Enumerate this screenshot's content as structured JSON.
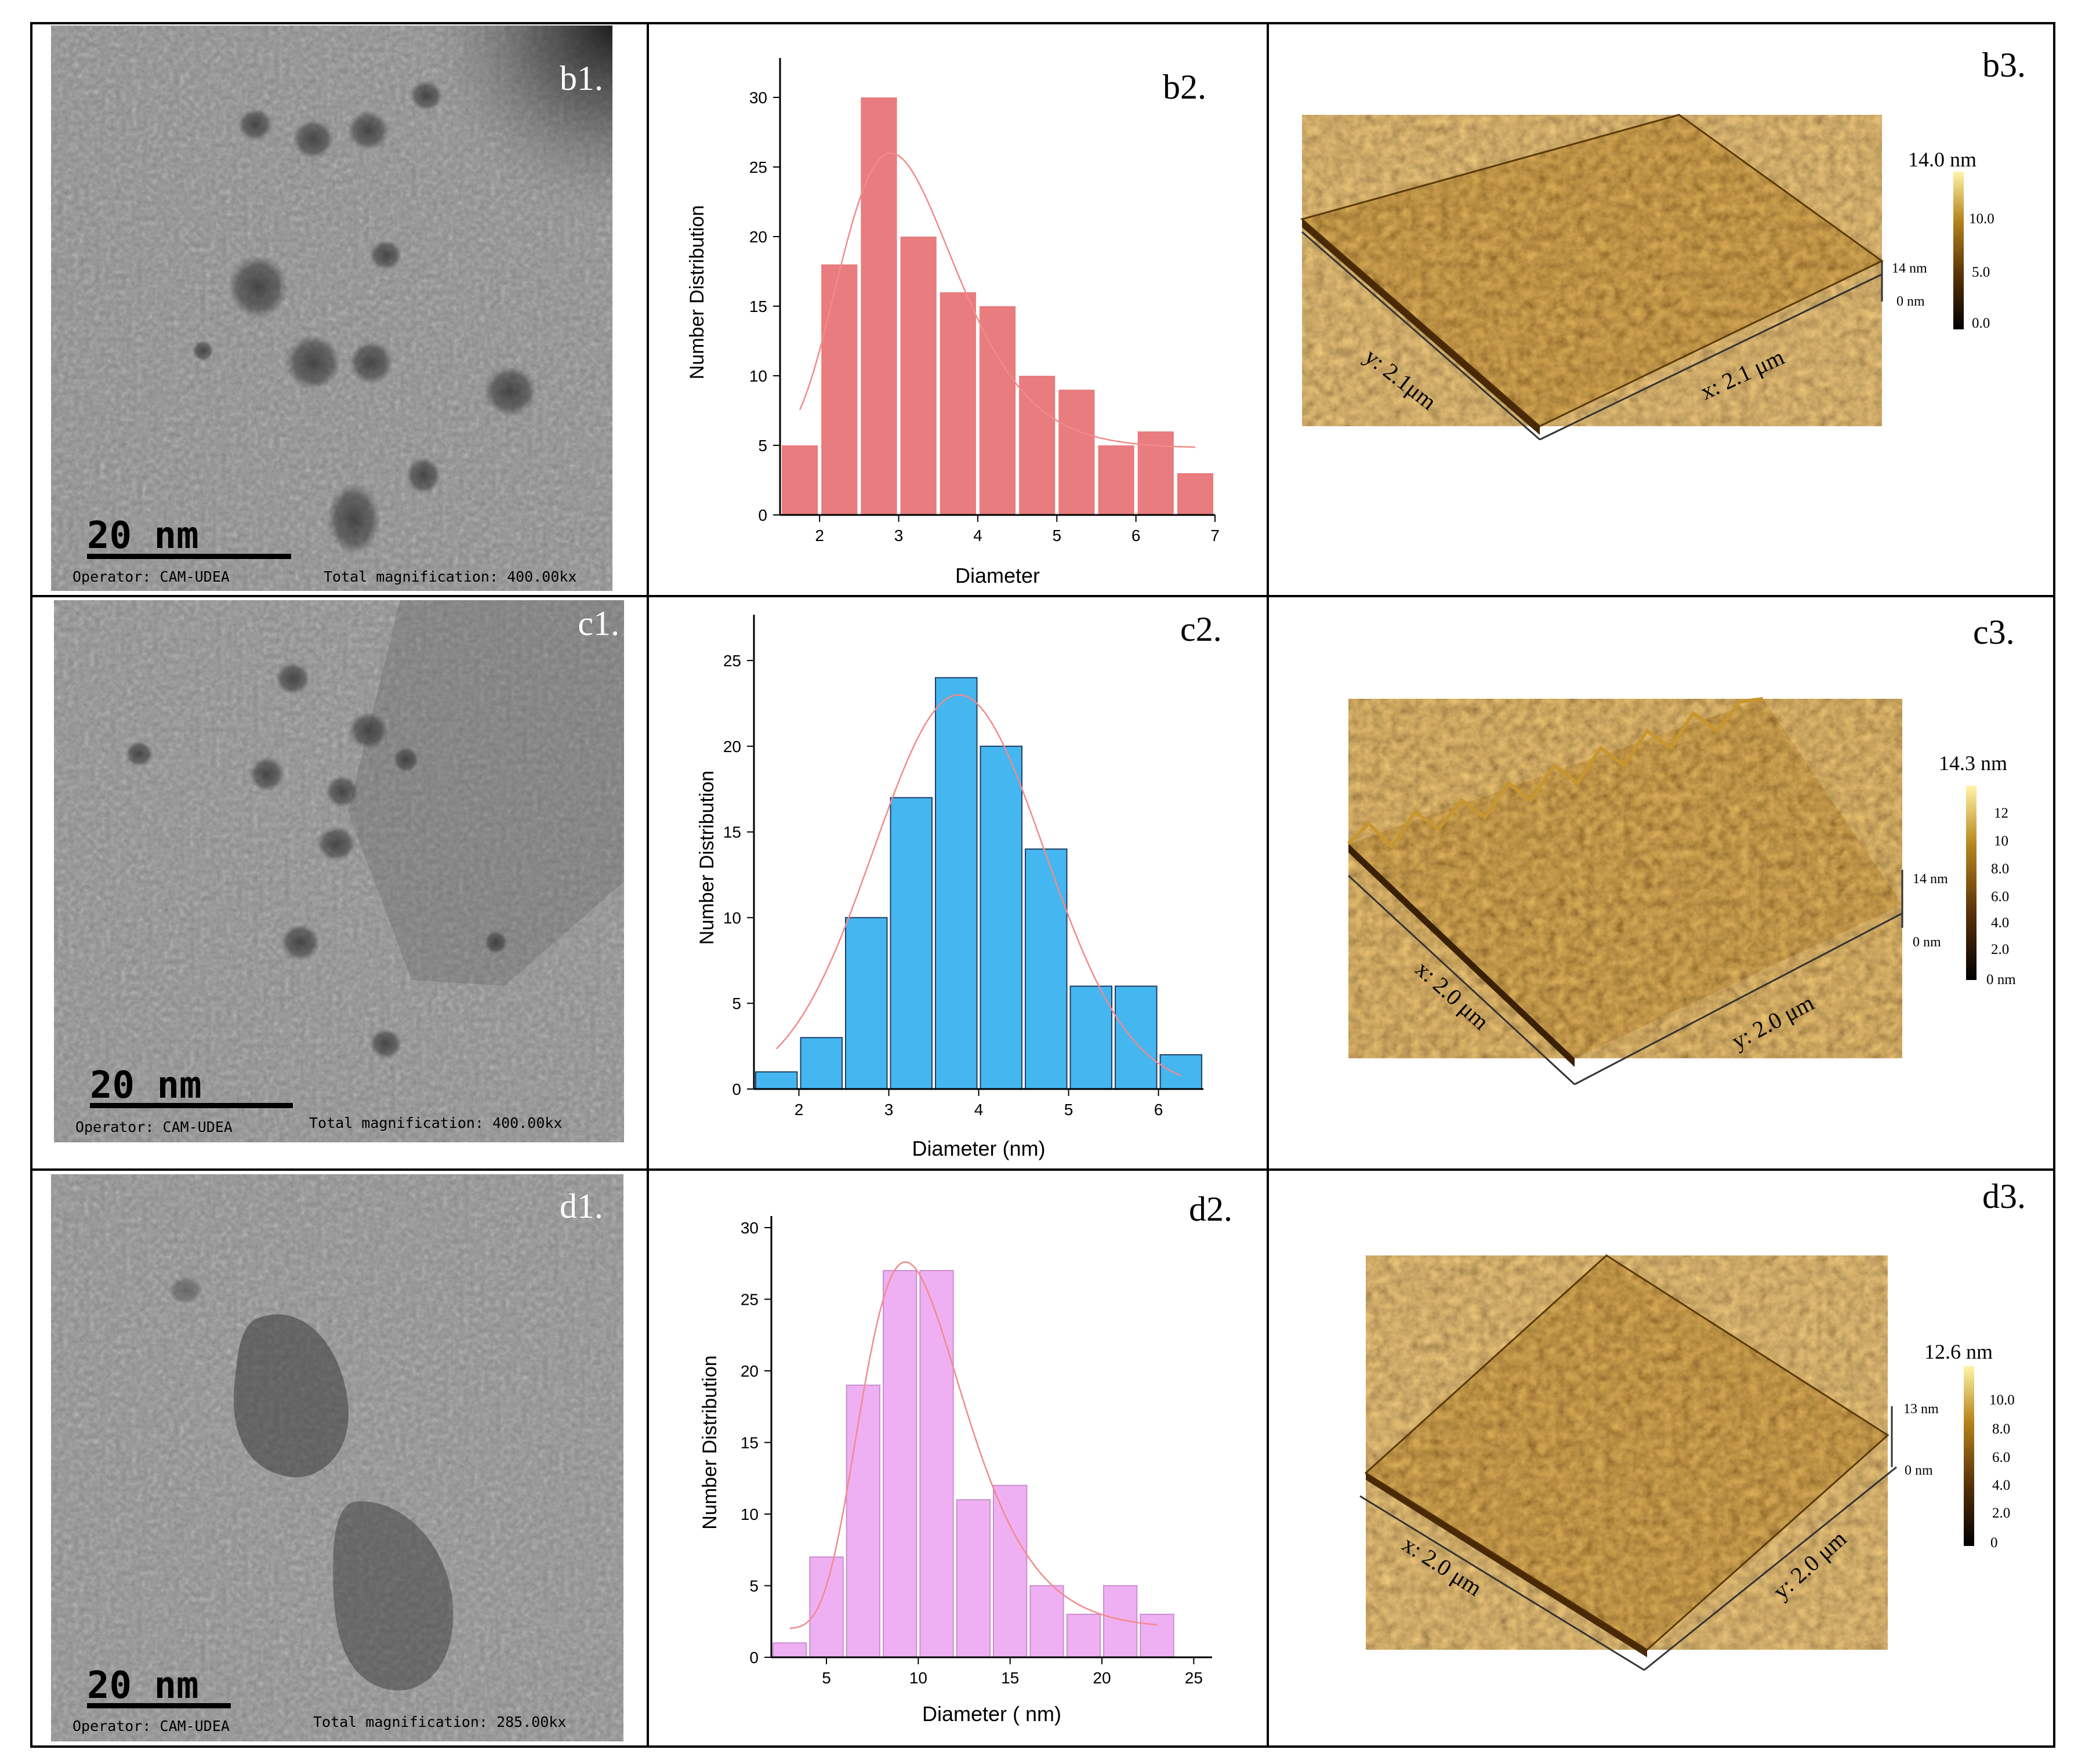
{
  "panels": {
    "b1": {
      "label": "b1.",
      "scale_bar": "20 nm",
      "operator": "Operator: CAM-UDEA",
      "magnification": "Total magnification: 400.00kx"
    },
    "c1": {
      "label": "c1.",
      "scale_bar": "20 nm",
      "operator": "Operator: CAM-UDEA",
      "magnification": "Total magnification: 400.00kx"
    },
    "d1": {
      "label": "d1.",
      "scale_bar": "20 nm",
      "operator": "Operator: CAM-UDEA",
      "magnification": "Total magnification: 285.00kx"
    },
    "b3": {
      "label": "b3.",
      "max_height": "14.0 nm",
      "colorbar_ticks": [
        "10.0",
        "5.0",
        "0.0"
      ],
      "z_top": "14 nm",
      "z_bottom": "0 nm",
      "axis_a": "y: 2.1μm",
      "axis_b": "x: 2.1 μm"
    },
    "c3": {
      "label": "c3.",
      "max_height": "14.3 nm",
      "colorbar_ticks": [
        "12",
        "10",
        "8.0",
        "6.0",
        "4.0",
        "2.0",
        "0 nm"
      ],
      "z_top": "14 nm",
      "z_bottom": "0 nm",
      "axis_a": "x: 2.0 μm",
      "axis_b": "y: 2.0 μm"
    },
    "d3": {
      "label": "d3.",
      "max_height": "12.6 nm",
      "colorbar_ticks": [
        "10.0",
        "8.0",
        "6.0",
        "4.0",
        "2.0",
        "0"
      ],
      "z_top": "13 nm",
      "z_bottom": "0 nm",
      "axis_a": "x: 2.0 μm",
      "axis_b": "y: 2.0 μm"
    }
  },
  "colors": {
    "b2": "#e87c7e",
    "c2": "#44b6f0",
    "d2": "#efb0f3",
    "fit": "#f28a8a",
    "afm_dark": "#4a2a06",
    "afm_mid": "#8a5a14",
    "afm_light": "#d8a84a"
  },
  "chart_data": [
    {
      "id": "b2",
      "type": "bar",
      "panel_label": "b2.",
      "title": "",
      "xlabel": "Diameter",
      "ylabel": "Number Distribution",
      "x": [
        1.75,
        2.25,
        2.75,
        3.25,
        3.75,
        4.25,
        4.75,
        5.25,
        5.75,
        6.25,
        6.75
      ],
      "bin_width": 0.5,
      "values": [
        5,
        18,
        30,
        20,
        16,
        15,
        10,
        9,
        5,
        6,
        3
      ],
      "xlim": [
        1.5,
        7
      ],
      "ylim": [
        0,
        32
      ],
      "xticks": [
        2,
        3,
        4,
        5,
        6,
        7
      ],
      "yticks": [
        0,
        5,
        10,
        15,
        20,
        25,
        30
      ],
      "fit": {
        "type": "lognormal",
        "center": 2.9,
        "peak": 26,
        "baseline": 4.8,
        "sigma": 0.25
      }
    },
    {
      "id": "c2",
      "type": "bar",
      "panel_label": "c2.",
      "title": "",
      "xlabel": "Diameter (nm)",
      "ylabel": "Number Distribution",
      "x": [
        1.75,
        2.25,
        2.75,
        3.25,
        3.75,
        4.25,
        4.75,
        5.25,
        5.75,
        6.25
      ],
      "bin_width": 0.5,
      "values": [
        1,
        3,
        10,
        17,
        24,
        20,
        14,
        6,
        6,
        2
      ],
      "xlim": [
        1.5,
        6.5
      ],
      "ylim": [
        0,
        27
      ],
      "xticks": [
        2,
        3,
        4,
        5,
        6
      ],
      "yticks": [
        0,
        5,
        10,
        15,
        20,
        25
      ],
      "fit": {
        "type": "gaussian",
        "center": 3.78,
        "peak": 23,
        "baseline": 0,
        "sigma": 0.95
      }
    },
    {
      "id": "d2",
      "type": "bar",
      "panel_label": "d2.",
      "title": "",
      "xlabel": "Diameter ( nm)",
      "ylabel": "Number Distribution",
      "x": [
        3,
        5,
        7,
        9,
        11,
        13,
        15,
        17,
        19,
        21,
        23
      ],
      "bin_width": 2,
      "values": [
        1,
        7,
        19,
        27,
        27,
        11,
        12,
        5,
        3,
        5,
        3
      ],
      "xlim": [
        2,
        26
      ],
      "ylim": [
        0,
        30
      ],
      "xticks": [
        5,
        10,
        15,
        20,
        25
      ],
      "yticks": [
        0,
        5,
        10,
        15,
        20,
        25,
        30
      ],
      "fit": {
        "type": "lognormal",
        "center": 9.3,
        "peak": 27.6,
        "baseline": 2,
        "sigma": 0.3
      }
    }
  ]
}
